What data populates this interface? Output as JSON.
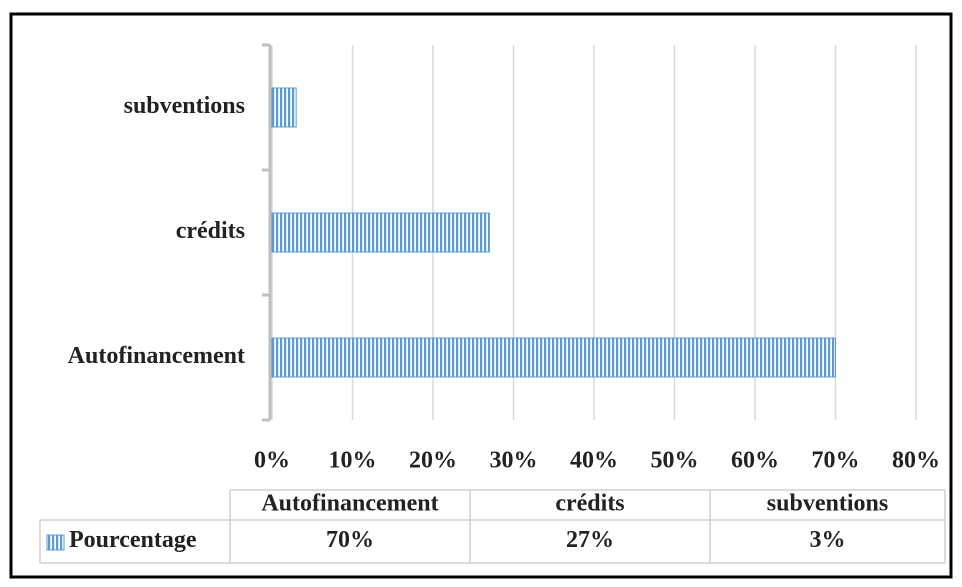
{
  "chart_data": {
    "type": "bar",
    "orientation": "horizontal",
    "categories": [
      "Autofinancement",
      "crédits",
      "subventions"
    ],
    "series": [
      {
        "name": "Pourcentage",
        "color": "#5b9bd5",
        "values": [
          70,
          27,
          3
        ],
        "value_labels": [
          "70%",
          "27%",
          "3%"
        ]
      }
    ],
    "xlim": [
      0,
      80
    ],
    "xticks": [
      {
        "value": 0,
        "label": "0%"
      },
      {
        "value": 10,
        "label": "10%"
      },
      {
        "value": 20,
        "label": "20%"
      },
      {
        "value": 30,
        "label": "30%"
      },
      {
        "value": 40,
        "label": "40%"
      },
      {
        "value": 50,
        "label": "50%"
      },
      {
        "value": 60,
        "label": "60%"
      },
      {
        "value": 70,
        "label": "70%"
      },
      {
        "value": 80,
        "label": "80%"
      }
    ],
    "grid": true,
    "data_table": true
  }
}
